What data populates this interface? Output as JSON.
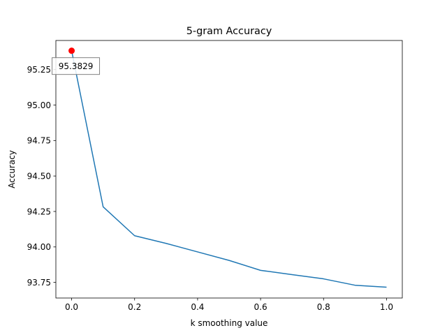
{
  "chart_data": {
    "type": "line",
    "title": "5-gram Accuracy",
    "xlabel": "k smoothing value",
    "ylabel": "Accuracy",
    "xlim": [
      -0.05,
      1.05
    ],
    "ylim": [
      93.64,
      95.455
    ],
    "x_ticks": [
      0.0,
      0.2,
      0.4,
      0.6,
      0.8,
      1.0
    ],
    "x_tick_labels": [
      "0.0",
      "0.2",
      "0.4",
      "0.6",
      "0.8",
      "1.0"
    ],
    "y_ticks": [
      93.75,
      94.0,
      94.25,
      94.5,
      94.75,
      95.0,
      95.25
    ],
    "y_tick_labels": [
      "93.75",
      "94.00",
      "94.25",
      "94.50",
      "94.75",
      "95.00",
      "95.25"
    ],
    "grid": false,
    "series": [
      {
        "x": [
          0.0,
          0.1,
          0.2,
          0.3,
          0.4,
          0.5,
          0.6,
          0.7,
          0.8,
          0.9,
          1.0
        ],
        "values": [
          95.3829,
          94.283,
          94.079,
          94.025,
          93.965,
          93.905,
          93.835,
          93.805,
          93.775,
          93.73,
          93.716
        ],
        "color": "#1f77b4"
      }
    ],
    "highlight": {
      "x": 0.0,
      "y": 95.3829,
      "label": "95.3829",
      "color": "#ff0000"
    }
  }
}
